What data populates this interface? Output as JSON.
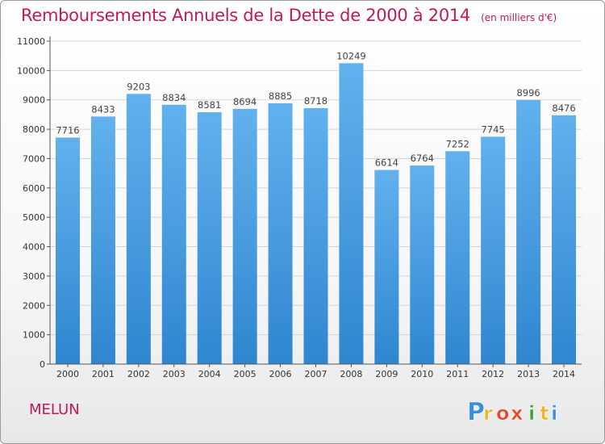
{
  "header": {
    "title": "Remboursements Annuels de la Dette de 2000 à 2014",
    "unit": "(en milliers d'€)"
  },
  "footer": {
    "city": "MELUN"
  },
  "logo": {
    "letters": [
      "P",
      "r",
      "o",
      "x",
      "i",
      "t",
      "i"
    ]
  },
  "colors": {
    "title": "#c2175b",
    "bar_light": "#62b1ee",
    "bar_dark": "#2f86cf",
    "grid": "#d4d4d4",
    "logo": [
      "#3b8fd8",
      "#e8b62a",
      "#e8492c",
      "#e8492c",
      "#3aa33c",
      "#e8b62a",
      "#3b8fd8"
    ]
  },
  "chart_data": {
    "type": "bar",
    "title": "Remboursements Annuels de la Dette de 2000 à 2014",
    "ylabel": "(en milliers d'€)",
    "xlabel": "",
    "categories": [
      "2000",
      "2001",
      "2002",
      "2003",
      "2004",
      "2005",
      "2006",
      "2007",
      "2008",
      "2009",
      "2010",
      "2011",
      "2012",
      "2013",
      "2014"
    ],
    "values": [
      7716,
      8433,
      9203,
      8834,
      8581,
      8694,
      8885,
      8718,
      10249,
      6614,
      6764,
      7252,
      7745,
      8996,
      8476
    ],
    "value_labels": [
      "7716",
      "8433",
      "9203",
      "8834",
      "8581",
      "8694",
      "8885",
      "8718",
      "10249",
      "6614",
      "6764",
      "7252",
      "7745",
      "8996",
      "8476"
    ],
    "yticks": [
      0,
      1000,
      2000,
      3000,
      4000,
      5000,
      6000,
      7000,
      8000,
      9000,
      10000,
      11000
    ],
    "ylim": [
      0,
      11000
    ],
    "grid": true
  }
}
